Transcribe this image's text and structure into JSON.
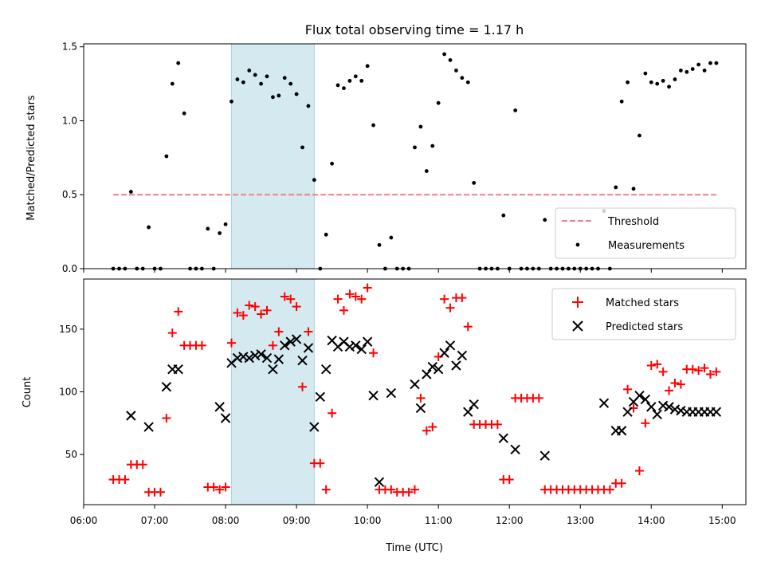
{
  "chart_data": [
    {
      "type": "scatter",
      "title": "Flux total observing time = 1.17 h",
      "ylabel": "Matched/Predicted stars",
      "xlabel": "",
      "x_axis": "time (UTC), 06:00–15:00",
      "xlim": [
        "06:00",
        "15:20"
      ],
      "ylim": [
        0,
        1.52
      ],
      "yticks": [
        0.0,
        0.5,
        1.0,
        1.5
      ],
      "ytick_labels": [
        "0.0",
        "0.5",
        "1.0",
        "1.5"
      ],
      "highlight_span": {
        "x0": "08:05",
        "x1": "09:15",
        "color": "#d4eaf0"
      },
      "legend_position": "lower-right",
      "threshold": {
        "name": "Threshold",
        "x0": "06:25",
        "x1": "14:55",
        "y": 0.5,
        "color": "#f08080",
        "style": "dashed"
      },
      "series": [
        {
          "name": "Measurements",
          "marker": "dot",
          "color": "#000000",
          "x": [
            "06:25",
            "06:30",
            "06:35",
            "06:40",
            "06:45",
            "06:50",
            "06:55",
            "07:00",
            "07:05",
            "07:10",
            "07:15",
            "07:20",
            "07:25",
            "07:30",
            "07:35",
            "07:40",
            "07:45",
            "07:50",
            "07:55",
            "08:00",
            "08:05",
            "08:10",
            "08:15",
            "08:20",
            "08:25",
            "08:30",
            "08:35",
            "08:40",
            "08:45",
            "08:50",
            "08:55",
            "09:00",
            "09:05",
            "09:10",
            "09:15",
            "09:20",
            "09:25",
            "09:30",
            "09:35",
            "09:40",
            "09:45",
            "09:50",
            "09:55",
            "10:00",
            "10:05",
            "10:10",
            "10:15",
            "10:20",
            "10:25",
            "10:30",
            "10:35",
            "10:40",
            "10:45",
            "10:50",
            "10:55",
            "11:00",
            "11:05",
            "11:10",
            "11:15",
            "11:20",
            "11:25",
            "11:30",
            "11:35",
            "11:40",
            "11:45",
            "11:50",
            "11:55",
            "12:00",
            "12:05",
            "12:10",
            "12:15",
            "12:20",
            "12:25",
            "12:30",
            "12:35",
            "12:40",
            "12:45",
            "12:50",
            "12:55",
            "13:00",
            "13:05",
            "13:10",
            "13:15",
            "13:20",
            "13:25",
            "13:30",
            "13:35",
            "13:40",
            "13:45",
            "13:50",
            "13:55",
            "14:00",
            "14:05",
            "14:10",
            "14:15",
            "14:20",
            "14:25",
            "14:30",
            "14:35",
            "14:40",
            "14:45",
            "14:50",
            "14:55"
          ],
          "y": [
            0,
            0,
            0,
            0.52,
            0,
            0,
            0.28,
            0,
            0,
            0.76,
            1.25,
            1.39,
            1.05,
            0,
            0,
            0,
            0.27,
            0,
            0.24,
            0.3,
            1.13,
            1.28,
            1.26,
            1.34,
            1.31,
            1.25,
            1.3,
            1.16,
            1.17,
            1.29,
            1.25,
            1.18,
            0.82,
            1.1,
            0.6,
            0,
            0.23,
            0.71,
            1.24,
            1.22,
            1.27,
            1.3,
            1.27,
            1.37,
            0.97,
            0.16,
            0,
            0.21,
            0,
            0,
            0,
            0.82,
            0.96,
            0.66,
            0.83,
            1.12,
            1.45,
            1.41,
            1.34,
            1.29,
            1.26,
            0.58,
            0,
            0,
            0,
            0,
            0.36,
            0,
            1.07,
            0,
            0,
            0,
            0,
            0.33,
            0,
            0,
            0,
            0,
            0,
            0,
            0,
            0,
            0,
            0.39,
            0,
            0.55,
            1.13,
            1.26,
            0.54,
            0.9,
            1.32,
            1.26,
            1.25,
            1.27,
            1.23,
            1.28,
            1.34,
            1.33,
            1.35,
            1.38,
            1.34,
            1.39,
            1.39
          ]
        }
      ]
    },
    {
      "type": "scatter",
      "title": "",
      "xlabel": "Time (UTC)",
      "ylabel": "Count",
      "xlim": [
        "06:00",
        "15:20"
      ],
      "ylim": [
        10,
        190
      ],
      "xticks": [
        "06:00",
        "07:00",
        "08:00",
        "09:00",
        "10:00",
        "11:00",
        "12:00",
        "13:00",
        "14:00",
        "15:00"
      ],
      "yticks": [
        50,
        100,
        150
      ],
      "ytick_labels": [
        "50",
        "100",
        "150"
      ],
      "highlight_span": {
        "x0": "08:05",
        "x1": "09:15",
        "color": "#d4eaf0"
      },
      "legend_position": "upper-right",
      "series": [
        {
          "name": "Matched stars",
          "marker": "plus",
          "color": "#ff0000",
          "x": [
            "06:25",
            "06:30",
            "06:35",
            "06:40",
            "06:45",
            "06:50",
            "06:55",
            "07:00",
            "07:05",
            "07:10",
            "07:15",
            "07:20",
            "07:25",
            "07:30",
            "07:35",
            "07:40",
            "07:45",
            "07:50",
            "07:55",
            "08:00",
            "08:05",
            "08:10",
            "08:15",
            "08:20",
            "08:25",
            "08:30",
            "08:35",
            "08:40",
            "08:45",
            "08:50",
            "08:55",
            "09:00",
            "09:05",
            "09:10",
            "09:15",
            "09:20",
            "09:25",
            "09:30",
            "09:35",
            "09:40",
            "09:45",
            "09:50",
            "09:55",
            "10:00",
            "10:05",
            "10:10",
            "10:15",
            "10:20",
            "10:25",
            "10:30",
            "10:35",
            "10:40",
            "10:45",
            "10:50",
            "10:55",
            "11:00",
            "11:05",
            "11:10",
            "11:15",
            "11:20",
            "11:25",
            "11:30",
            "11:35",
            "11:40",
            "11:45",
            "11:50",
            "11:55",
            "12:00",
            "12:05",
            "12:10",
            "12:15",
            "12:20",
            "12:25",
            "12:30",
            "12:35",
            "12:40",
            "12:45",
            "12:50",
            "12:55",
            "13:00",
            "13:05",
            "13:10",
            "13:15",
            "13:20",
            "13:25",
            "13:30",
            "13:35",
            "13:40",
            "13:45",
            "13:50",
            "13:55",
            "14:00",
            "14:05",
            "14:10",
            "14:15",
            "14:20",
            "14:25",
            "14:30",
            "14:35",
            "14:40",
            "14:45",
            "14:50",
            "14:55"
          ],
          "y": [
            30,
            30,
            30,
            42,
            42,
            42,
            20,
            20,
            20,
            79,
            147,
            164,
            137,
            137,
            137,
            137,
            24,
            24,
            22,
            24,
            139,
            163,
            161,
            169,
            168,
            162,
            165,
            137,
            148,
            176,
            174,
            168,
            104,
            148,
            43,
            43,
            22,
            83,
            174,
            165,
            178,
            176,
            174,
            183,
            131,
            22,
            22,
            22,
            20,
            20,
            20,
            22,
            95,
            69,
            72,
            128,
            174,
            167,
            175,
            175,
            152,
            74,
            74,
            74,
            74,
            74,
            30,
            30,
            95,
            95,
            95,
            95,
            95,
            22,
            22,
            22,
            22,
            22,
            22,
            22,
            22,
            22,
            22,
            22,
            22,
            27,
            27,
            102,
            87,
            37,
            75,
            121,
            122,
            116,
            101,
            107,
            106,
            118,
            118,
            117,
            119,
            114,
            116
          ]
        },
        {
          "name": "Predicted stars",
          "marker": "x",
          "color": "#000000",
          "x": [
            "06:40",
            "06:55",
            "07:10",
            "07:15",
            "07:20",
            "07:55",
            "08:05",
            "08:00",
            "08:10",
            "08:15",
            "08:20",
            "08:25",
            "08:30",
            "08:35",
            "08:40",
            "08:45",
            "08:50",
            "08:55",
            "09:00",
            "09:05",
            "09:10",
            "09:15",
            "09:20",
            "09:25",
            "09:30",
            "09:35",
            "09:40",
            "09:45",
            "09:50",
            "09:55",
            "10:00",
            "10:05",
            "10:10",
            "10:20",
            "10:40",
            "10:45",
            "10:50",
            "10:55",
            "11:00",
            "11:05",
            "11:10",
            "11:15",
            "11:20",
            "11:25",
            "11:30",
            "11:55",
            "12:05",
            "12:30",
            "13:20",
            "13:30",
            "13:35",
            "13:40",
            "13:45",
            "13:50",
            "13:55",
            "14:00",
            "14:05",
            "14:10",
            "14:15",
            "14:20",
            "14:25",
            "14:30",
            "14:35",
            "14:40",
            "14:45",
            "14:50",
            "14:55"
          ],
          "y": [
            81,
            72,
            104,
            118,
            118,
            88,
            123,
            79,
            127,
            128,
            127,
            129,
            130,
            127,
            118,
            126,
            137,
            140,
            142,
            125,
            135,
            72,
            96,
            118,
            141,
            136,
            140,
            136,
            137,
            134,
            140,
            97,
            28,
            99,
            106,
            87,
            114,
            120,
            118,
            131,
            137,
            121,
            129,
            84,
            90,
            63,
            54,
            49,
            91,
            69,
            69,
            84,
            92,
            97,
            94,
            88,
            82,
            89,
            88,
            86,
            85,
            84,
            84,
            84,
            84,
            84,
            84
          ]
        }
      ]
    }
  ]
}
